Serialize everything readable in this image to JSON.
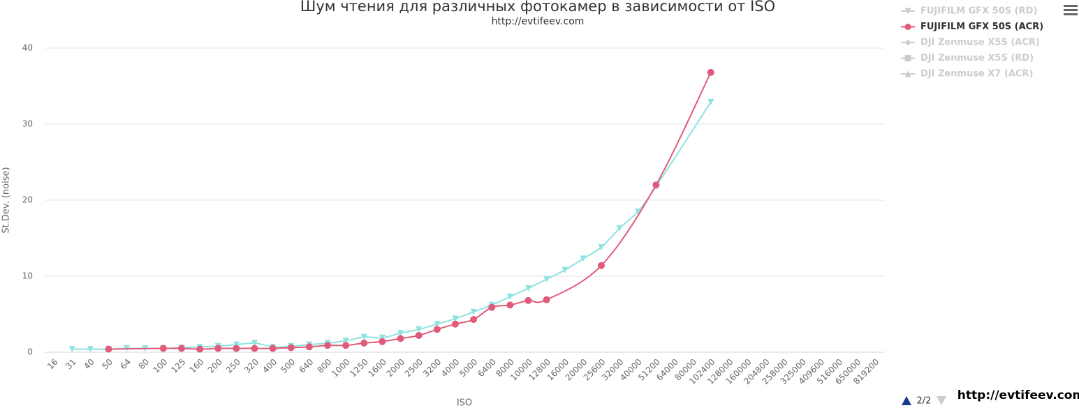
{
  "chart_data": {
    "type": "line",
    "title": "Шум чтения для различных фотокамер в зависимости от ISO",
    "subtitle": "http://evtifeev.com",
    "y_label": "St.Dev. (noise)",
    "x_label": "ISO",
    "watermark": "http://evtifeev.com",
    "categories": [
      "16",
      "31",
      "40",
      "50",
      "64",
      "80",
      "100",
      "125",
      "160",
      "200",
      "250",
      "320",
      "400",
      "500",
      "640",
      "800",
      "1000",
      "1250",
      "1600",
      "2000",
      "2500",
      "3200",
      "4000",
      "5000",
      "6400",
      "8000",
      "10000",
      "12800",
      "16000",
      "20000",
      "25600",
      "32000",
      "40000",
      "51200",
      "64000",
      "80000",
      "102400",
      "128000",
      "160000",
      "204800",
      "258000",
      "325000",
      "409600",
      "516000",
      "650000",
      "819200"
    ],
    "ylim": [
      0,
      40
    ],
    "yticks": [
      0,
      10,
      20,
      30,
      40
    ],
    "grid": true,
    "connect_nulls": true,
    "series": [
      {
        "color": "#8ee3e0",
        "symbol": "triangle-down",
        "values": [
          null,
          0.4,
          0.4,
          0.4,
          0.5,
          0.5,
          0.5,
          0.6,
          0.7,
          0.8,
          1.0,
          1.2,
          0.7,
          0.8,
          1.0,
          1.2,
          1.5,
          2.0,
          1.9,
          2.5,
          3.0,
          3.7,
          4.4,
          5.3,
          6.2,
          7.3,
          8.4,
          9.6,
          10.8,
          12.3,
          13.8,
          16.3,
          18.5,
          21.8,
          null,
          null,
          32.9,
          null,
          null,
          null,
          null,
          null,
          null,
          null,
          null,
          null
        ]
      },
      {
        "name": "FUJIFILM GFX 50S (ACR)",
        "color": "#e05a7a",
        "symbol": "circle",
        "values": [
          null,
          null,
          null,
          0.4,
          null,
          null,
          0.5,
          0.5,
          0.4,
          0.5,
          0.5,
          0.5,
          0.5,
          0.6,
          0.7,
          0.9,
          0.9,
          1.2,
          1.4,
          1.8,
          2.2,
          3.0,
          3.7,
          4.3,
          5.9,
          6.2,
          6.8,
          6.9,
          null,
          null,
          11.4,
          null,
          null,
          22.0,
          null,
          null,
          36.8,
          null,
          null,
          null,
          null,
          null,
          null,
          null,
          null,
          null
        ]
      }
    ],
    "legend": {
      "position": "top-right",
      "page": "2/2",
      "items": [
        {
          "name": "FUJIFILM GFX 50S (RD)",
          "symbol": "triangle-down",
          "hidden": true
        },
        {
          "name": "FUJIFILM GFX 50S (ACR)",
          "symbol": "circle",
          "hidden": false,
          "color": "#e05a7a"
        },
        {
          "name": "DJI Zenmuse X5S (ACR)",
          "symbol": "diamond",
          "hidden": true
        },
        {
          "name": "DJI Zenmuse X5S (RD)",
          "symbol": "square",
          "hidden": true
        },
        {
          "name": "DJI Zenmuse X7 (ACR)",
          "symbol": "triangle",
          "hidden": true
        }
      ]
    }
  }
}
